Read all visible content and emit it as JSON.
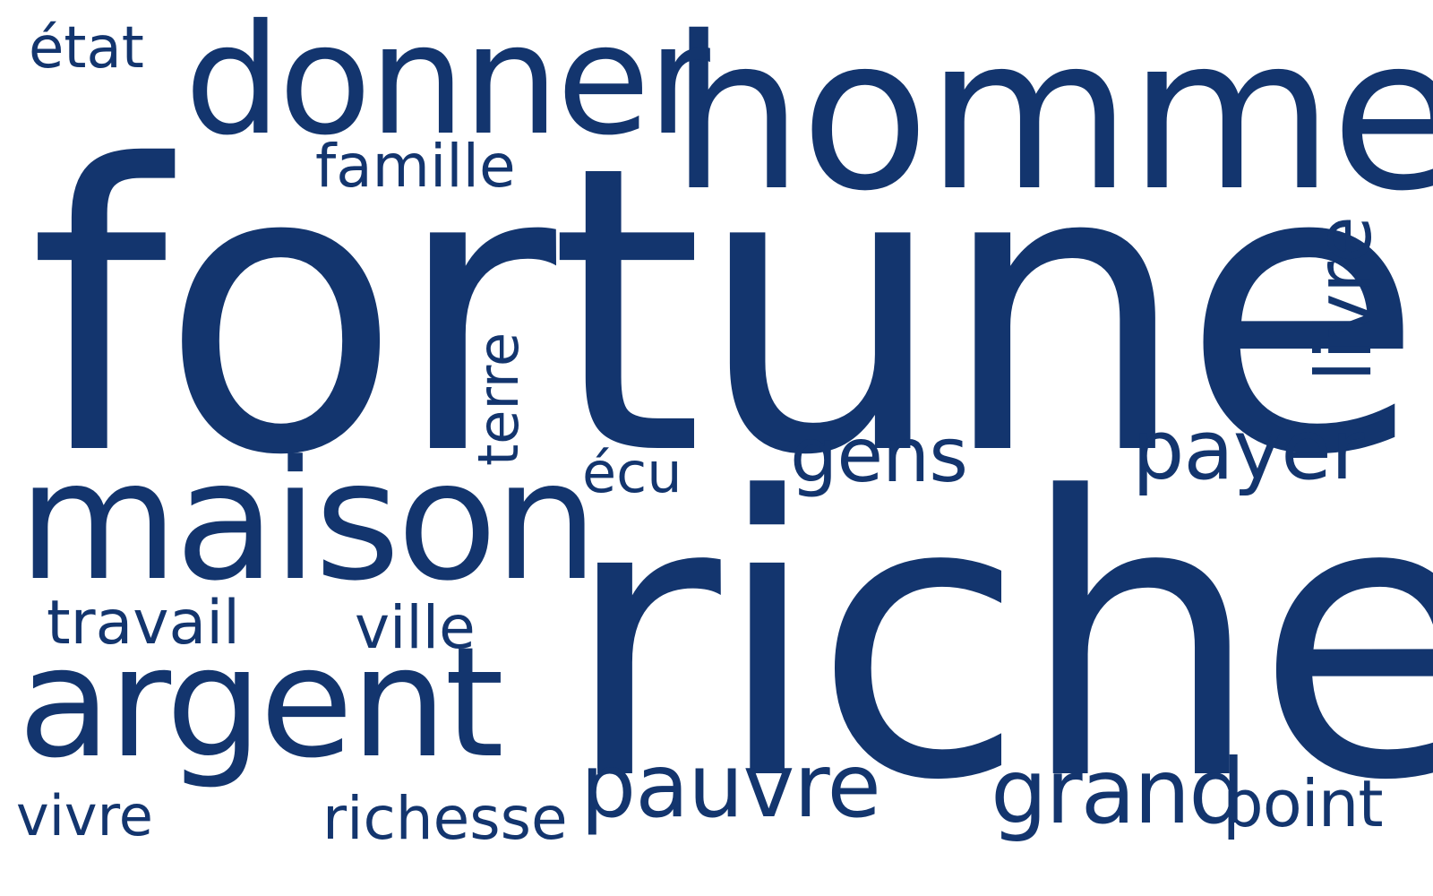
{
  "colors": {
    "background": "#ffffff",
    "text": "#13356e"
  },
  "words": {
    "fortune": "fortune",
    "riche": "riche",
    "homme": "homme",
    "donner": "donner",
    "maison": "maison",
    "argent": "argent",
    "pauvre": "pauvre",
    "grand": "grand",
    "payer": "payer",
    "gens": "gens",
    "point": "point",
    "travail": "travail",
    "ville": "ville",
    "famille": "famille",
    "richesse": "richesse",
    "vivre": "vivre",
    "ecu": "écu",
    "etat": "état",
    "terre": "terre",
    "livre": "livre"
  }
}
